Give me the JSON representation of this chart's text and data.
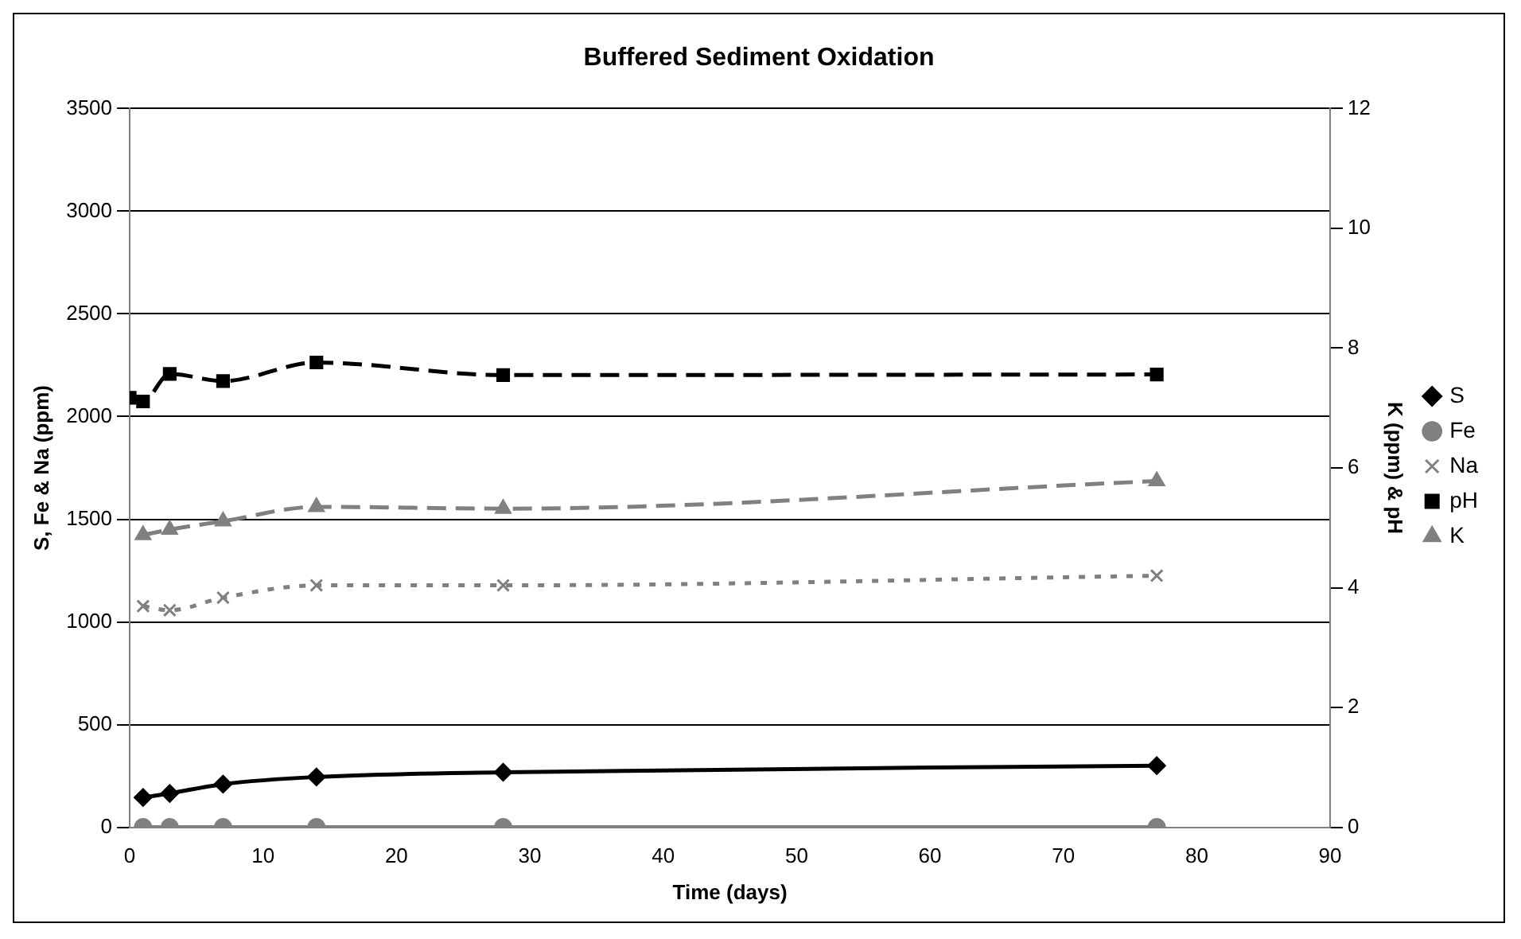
{
  "chart_data": {
    "type": "line",
    "title": "Buffered Sediment Oxidation",
    "xlabel": "Time (days)",
    "ylabel": "S, Fe & Na (ppm)",
    "y2label": "K (ppm) & pH",
    "xlim": [
      0,
      90
    ],
    "xticks": [
      0,
      10,
      20,
      30,
      40,
      50,
      60,
      70,
      80,
      90
    ],
    "ylim": [
      0,
      3500
    ],
    "yticks": [
      0,
      500,
      1000,
      1500,
      2000,
      2500,
      3000,
      3500
    ],
    "y2lim": [
      0,
      12
    ],
    "y2ticks": [
      0,
      2,
      4,
      6,
      8,
      10,
      12
    ],
    "grid": "y",
    "legend": "right",
    "series": [
      {
        "name": "S",
        "color": "#000000",
        "marker": "diamond",
        "line_style": "solid",
        "x": [
          1,
          3,
          7,
          14,
          28,
          77
        ],
        "values": [
          145,
          165,
          210,
          245,
          268,
          300
        ]
      },
      {
        "name": "Fe",
        "color": "#808080",
        "marker": "circle",
        "line_style": "solid",
        "x": [
          1,
          3,
          7,
          14,
          28,
          77
        ],
        "values": [
          0,
          0,
          0,
          0,
          0,
          0
        ]
      },
      {
        "name": "Na",
        "color": "#808080",
        "marker": "cross",
        "line_style": "dotted",
        "x": [
          1,
          3,
          7,
          14,
          28,
          77
        ],
        "values": [
          1077,
          1057,
          1118,
          1178,
          1178,
          1225
        ]
      },
      {
        "name": "pH",
        "axis": "y2",
        "color": "#000000",
        "marker": "square",
        "line_style": "dashed",
        "x": [
          0,
          1,
          3,
          7,
          14,
          28,
          77
        ],
        "values": [
          7.17,
          7.11,
          7.57,
          7.45,
          7.76,
          7.55,
          7.56
        ]
      },
      {
        "name": "K",
        "axis": "y2",
        "color": "#808080",
        "marker": "triangle",
        "line_style": "dashed",
        "x": [
          1,
          3,
          7,
          14,
          28,
          77
        ],
        "values": [
          4.88,
          4.97,
          5.11,
          5.35,
          5.32,
          5.78
        ]
      }
    ]
  }
}
